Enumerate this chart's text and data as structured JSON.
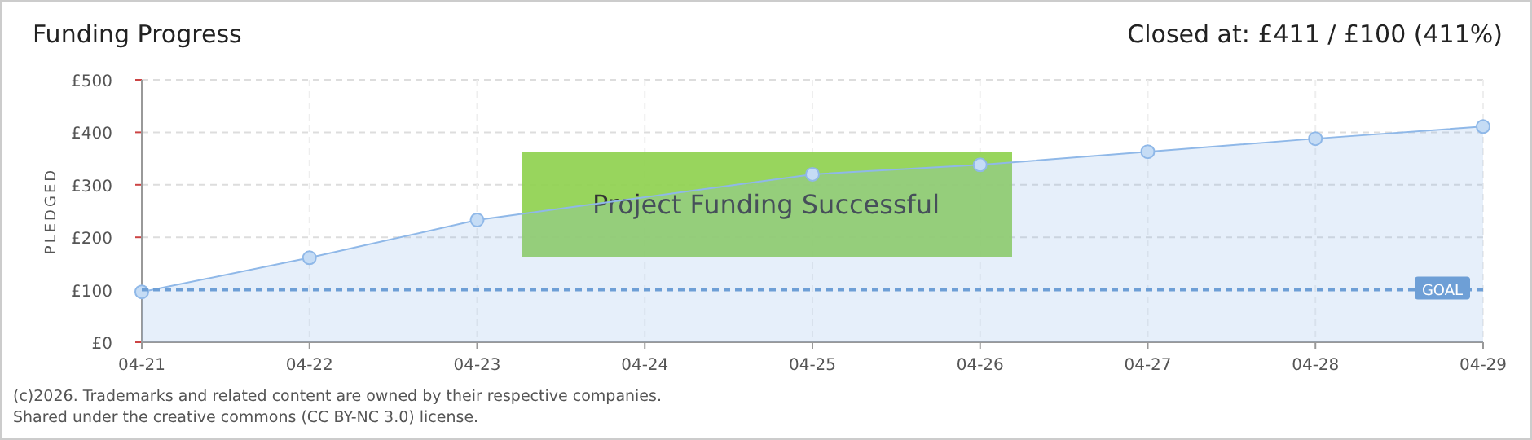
{
  "chart_data": {
    "type": "area",
    "title": "Funding Progress",
    "ylabel": "PLEDGED",
    "categories": [
      "04-21",
      "04-22",
      "04-23",
      "04-24",
      "04-25",
      "04-26",
      "04-27",
      "04-28",
      "04-29"
    ],
    "series": [
      {
        "color": "#8fb8e8",
        "values": [
          96,
          161,
          233,
          null,
          320,
          338,
          363,
          388,
          411
        ]
      }
    ],
    "ylim": [
      0,
      500
    ],
    "yticks": [
      {
        "value": 0,
        "label": "£0"
      },
      {
        "value": 100,
        "label": "£100"
      },
      {
        "value": 200,
        "label": "£200"
      },
      {
        "value": 300,
        "label": "£300"
      },
      {
        "value": 400,
        "label": "£400"
      },
      {
        "value": 500,
        "label": "£500"
      }
    ],
    "grid": true,
    "marker": "circle",
    "ref_lines": [
      {
        "axis": "y",
        "value": 100,
        "label": "GOAL",
        "color": "#6e9fd6",
        "line_style": "dashed"
      }
    ],
    "annotations": [
      "Closed at:  £411 /  £100 (411%)",
      "Project Funding Successful",
      "(c)2026. Trademarks and related content are owned by their respective companies.",
      "Shared under the creative commons (CC BY-NC 3.0) license."
    ]
  }
}
